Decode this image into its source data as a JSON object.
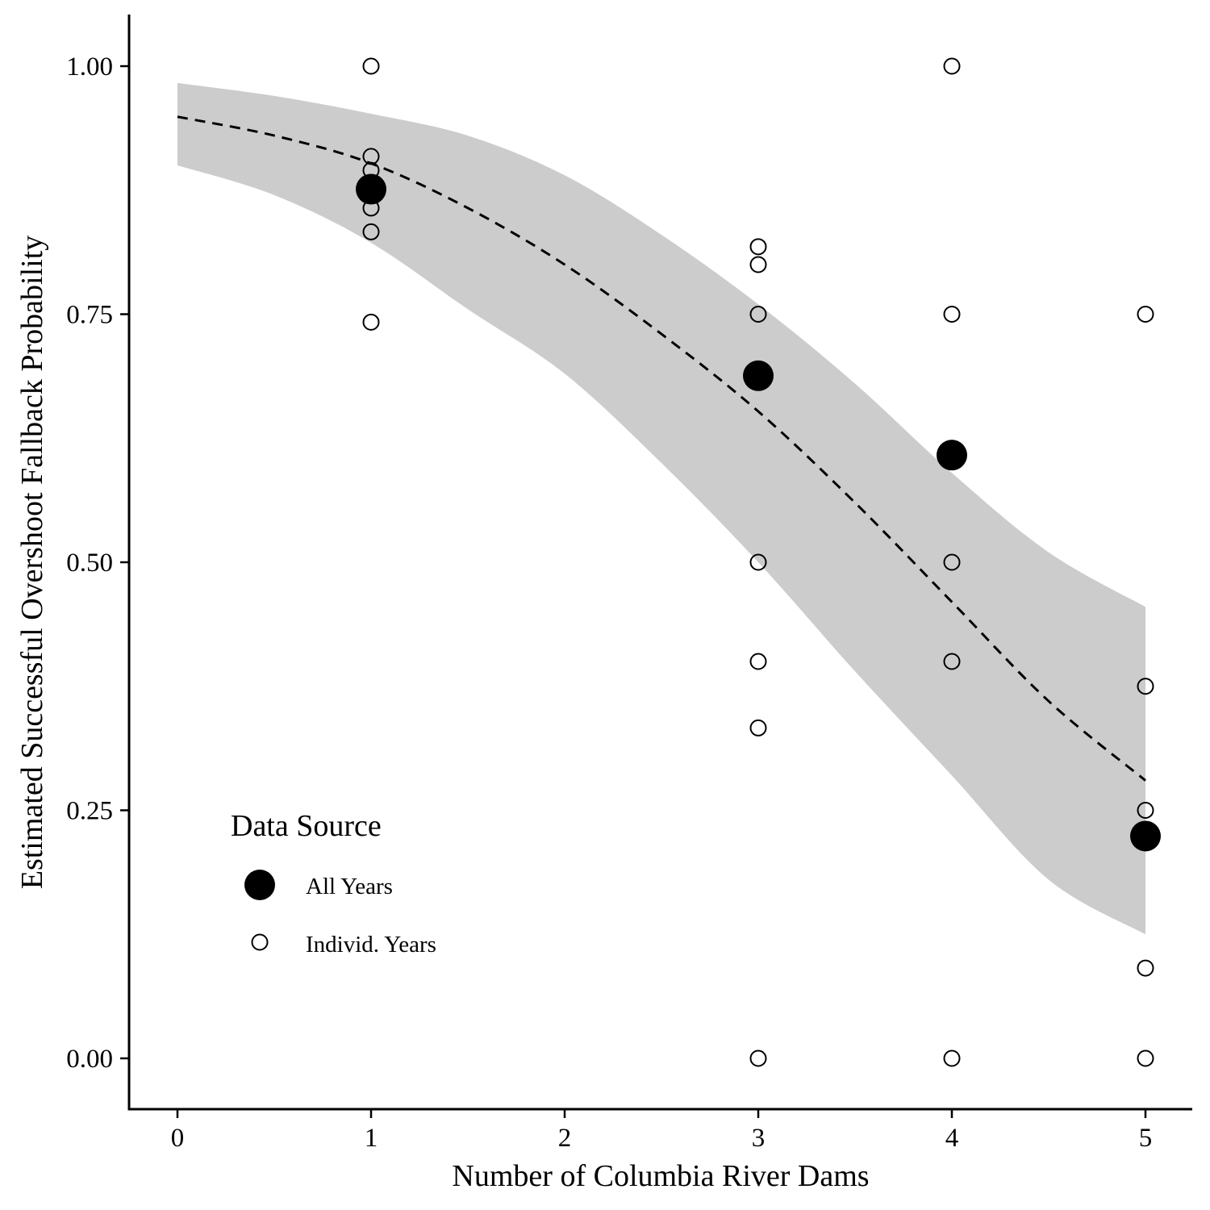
{
  "chart_data": {
    "type": "scatter",
    "title": "",
    "xlabel": "Number of Columbia River Dams",
    "ylabel": "Estimated Successful Overshoot Fallback Probability",
    "xlim": [
      -0.25,
      5.25
    ],
    "ylim": [
      -0.05,
      1.05
    ],
    "x_ticks": [
      0,
      1,
      2,
      3,
      4,
      5
    ],
    "x_tick_labels": [
      "0",
      "1",
      "2",
      "3",
      "4",
      "5"
    ],
    "y_ticks": [
      0,
      0.25,
      0.5,
      0.75,
      1
    ],
    "y_tick_labels": [
      "0.00",
      "0.25",
      "0.50",
      "0.75",
      "1.00"
    ],
    "grid": false,
    "legend": {
      "title": "Data Source",
      "position": "bottom-left",
      "entries": [
        "All Years",
        "Individ. Years"
      ]
    },
    "series": [
      {
        "name": "All Years",
        "marker": "filled-circle",
        "points": [
          {
            "x": 1,
            "y": 0.876
          },
          {
            "x": 3,
            "y": 0.688
          },
          {
            "x": 4,
            "y": 0.608
          },
          {
            "x": 5,
            "y": 0.224
          }
        ]
      },
      {
        "name": "Individ. Years",
        "marker": "open-circle",
        "points": [
          {
            "x": 1,
            "y": 1.0
          },
          {
            "x": 1,
            "y": 0.909
          },
          {
            "x": 1,
            "y": 0.895
          },
          {
            "x": 1,
            "y": 0.857
          },
          {
            "x": 1,
            "y": 0.833
          },
          {
            "x": 1,
            "y": 0.742
          },
          {
            "x": 3,
            "y": 0.818
          },
          {
            "x": 3,
            "y": 0.8
          },
          {
            "x": 3,
            "y": 0.75
          },
          {
            "x": 3,
            "y": 0.5
          },
          {
            "x": 3,
            "y": 0.4
          },
          {
            "x": 3,
            "y": 0.333
          },
          {
            "x": 3,
            "y": 0.0
          },
          {
            "x": 4,
            "y": 1.0
          },
          {
            "x": 4,
            "y": 0.75
          },
          {
            "x": 4,
            "y": 0.5
          },
          {
            "x": 4,
            "y": 0.4
          },
          {
            "x": 4,
            "y": 0.0
          },
          {
            "x": 5,
            "y": 0.75
          },
          {
            "x": 5,
            "y": 0.375
          },
          {
            "x": 5,
            "y": 0.25
          },
          {
            "x": 5,
            "y": 0.091
          },
          {
            "x": 5,
            "y": 0.0
          }
        ]
      }
    ],
    "fit": {
      "style": "dashed",
      "color": "#000000",
      "x": [
        0,
        0.5,
        1,
        1.5,
        2,
        2.5,
        3,
        3.5,
        4,
        4.5,
        5
      ],
      "y": [
        0.949,
        0.93,
        0.902,
        0.857,
        0.8,
        0.73,
        0.652,
        0.56,
        0.46,
        0.36,
        0.28
      ]
    },
    "ci_band": {
      "color": "#cccccc",
      "x": [
        0,
        0.5,
        1,
        1.5,
        2,
        2.5,
        3,
        3.5,
        4,
        4.5,
        5
      ],
      "lower": [
        0.9,
        0.87,
        0.822,
        0.755,
        0.69,
        0.6,
        0.5,
        0.39,
        0.285,
        0.18,
        0.125
      ],
      "upper": [
        0.983,
        0.97,
        0.952,
        0.93,
        0.89,
        0.83,
        0.76,
        0.68,
        0.59,
        0.51,
        0.455
      ]
    }
  }
}
